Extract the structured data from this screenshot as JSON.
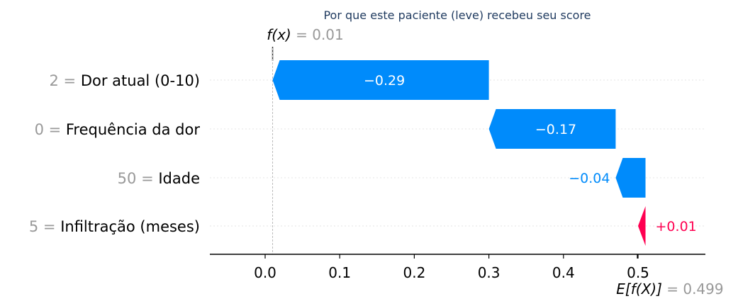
{
  "chart_data": {
    "type": "waterfall",
    "title": "Por que este paciente (leve) recebeu seu score",
    "fx_label": "f(x)",
    "fx_value_text": "= 0.01",
    "fx": 0.01,
    "ex_label": "E[f(X)]",
    "ex_value_text": "= 0.499",
    "base_value": 0.499,
    "xlim": [
      -0.075,
      0.59
    ],
    "xticks": [
      0.0,
      0.1,
      0.2,
      0.3,
      0.4,
      0.5
    ],
    "xtick_labels": [
      "0.0",
      "0.1",
      "0.2",
      "0.3",
      "0.4",
      "0.5"
    ],
    "features": [
      {
        "value": "2",
        "name": "Dor atual (0-10)",
        "contribution": -0.29,
        "label": "−0.29"
      },
      {
        "value": "0",
        "name": "Frequência da dor",
        "contribution": -0.17,
        "label": "−0.17"
      },
      {
        "value": "50",
        "name": "Idade",
        "contribution": -0.04,
        "label": "−0.04"
      },
      {
        "value": "5",
        "name": "Infiltração (meses)",
        "contribution": 0.01,
        "label": "+0.01"
      }
    ],
    "colors": {
      "positive": "#ff0051",
      "negative": "#008bfb"
    }
  }
}
